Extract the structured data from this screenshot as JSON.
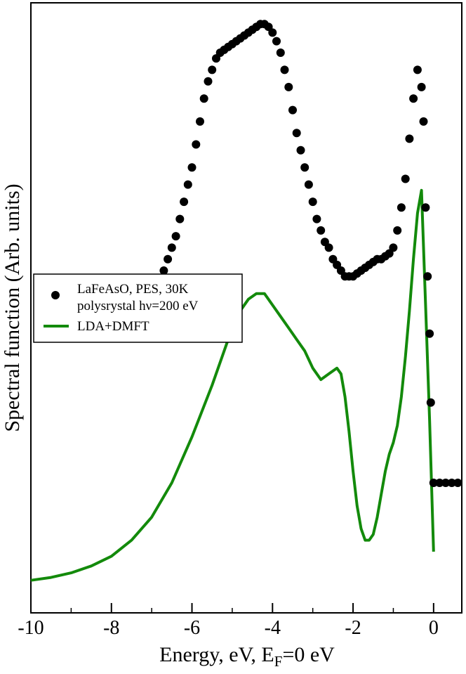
{
  "chart_data": {
    "type": "scatter",
    "xlabel_main": "Energy, eV, E",
    "xlabel_sub": "F",
    "xlabel_tail": "=0 eV",
    "ylabel": "Spectral function (Arb. units)",
    "xlim": [
      -10,
      0.7
    ],
    "ylim": [
      0,
      1
    ],
    "y_ticks_shown": false,
    "grid": false,
    "legend_position": "middle-left",
    "x_ticks": [
      -10,
      -8,
      -6,
      -4,
      -2,
      0
    ],
    "x_tick_labels": [
      "-10",
      "-8",
      "-6",
      "-4",
      "-2",
      "0"
    ],
    "series": [
      {
        "name_lines": [
          "LaFeAsO, PES, 30K",
          "polysrystal hν=200 eV"
        ],
        "kind": "scatter",
        "color": "#000000",
        "x": [
          -7.0,
          -6.9,
          -6.8,
          -6.7,
          -6.6,
          -6.5,
          -6.4,
          -6.3,
          -6.2,
          -6.1,
          -6.0,
          -5.9,
          -5.8,
          -5.7,
          -5.6,
          -5.5,
          -5.4,
          -5.3,
          -5.2,
          -5.1,
          -5.0,
          -4.9,
          -4.8,
          -4.7,
          -4.6,
          -4.5,
          -4.4,
          -4.3,
          -4.2,
          -4.1,
          -4.0,
          -3.9,
          -3.8,
          -3.7,
          -3.6,
          -3.5,
          -3.4,
          -3.3,
          -3.2,
          -3.1,
          -3.0,
          -2.9,
          -2.8,
          -2.7,
          -2.6,
          -2.5,
          -2.4,
          -2.3,
          -2.2,
          -2.1,
          -2.0,
          -1.9,
          -1.8,
          -1.7,
          -1.6,
          -1.5,
          -1.4,
          -1.3,
          -1.2,
          -1.1,
          -1.0,
          -0.9,
          -0.8,
          -0.7,
          -0.6,
          -0.5,
          -0.4,
          -0.3,
          -0.25,
          -0.2,
          -0.15,
          -0.1,
          -0.07,
          0.0,
          0.15,
          0.3,
          0.45,
          0.6
        ],
        "y": [
          0.5,
          0.52,
          0.54,
          0.56,
          0.58,
          0.6,
          0.62,
          0.65,
          0.68,
          0.71,
          0.74,
          0.78,
          0.82,
          0.86,
          0.89,
          0.91,
          0.93,
          0.94,
          0.945,
          0.95,
          0.955,
          0.96,
          0.965,
          0.97,
          0.975,
          0.98,
          0.985,
          0.99,
          0.99,
          0.985,
          0.975,
          0.96,
          0.94,
          0.91,
          0.88,
          0.84,
          0.8,
          0.77,
          0.74,
          0.71,
          0.68,
          0.65,
          0.63,
          0.61,
          0.6,
          0.58,
          0.57,
          0.56,
          0.55,
          0.55,
          0.55,
          0.555,
          0.56,
          0.565,
          0.57,
          0.575,
          0.58,
          0.58,
          0.585,
          0.59,
          0.6,
          0.63,
          0.67,
          0.72,
          0.79,
          0.86,
          0.91,
          0.88,
          0.82,
          0.67,
          0.55,
          0.45,
          0.33,
          0.19,
          0.19,
          0.19,
          0.19,
          0.19
        ]
      },
      {
        "name": "LDA+DMFT",
        "kind": "line",
        "color": "#138a0b",
        "x": [
          -10.0,
          -9.5,
          -9.0,
          -8.5,
          -8.0,
          -7.5,
          -7.0,
          -6.5,
          -6.0,
          -5.5,
          -5.2,
          -5.0,
          -4.8,
          -4.6,
          -4.4,
          -4.2,
          -4.0,
          -3.8,
          -3.6,
          -3.4,
          -3.2,
          -3.0,
          -2.8,
          -2.6,
          -2.4,
          -2.3,
          -2.2,
          -2.1,
          -2.0,
          -1.9,
          -1.8,
          -1.7,
          -1.6,
          -1.5,
          -1.4,
          -1.3,
          -1.2,
          -1.1,
          -1.0,
          -0.9,
          -0.8,
          -0.7,
          -0.6,
          -0.5,
          -0.4,
          -0.3,
          -0.2,
          -0.1,
          0.0
        ],
        "y": [
          0.02,
          0.025,
          0.033,
          0.045,
          0.062,
          0.09,
          0.13,
          0.19,
          0.27,
          0.36,
          0.42,
          0.46,
          0.49,
          0.51,
          0.52,
          0.52,
          0.5,
          0.48,
          0.46,
          0.44,
          0.42,
          0.39,
          0.37,
          0.38,
          0.39,
          0.38,
          0.34,
          0.28,
          0.21,
          0.15,
          0.11,
          0.09,
          0.09,
          0.1,
          0.13,
          0.17,
          0.21,
          0.24,
          0.26,
          0.29,
          0.34,
          0.41,
          0.49,
          0.58,
          0.66,
          0.7,
          0.5,
          0.3,
          0.07
        ]
      }
    ]
  }
}
